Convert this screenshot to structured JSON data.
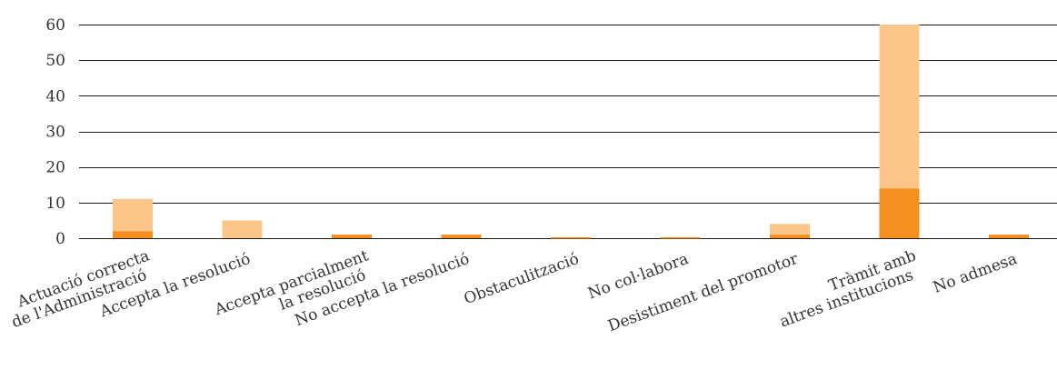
{
  "chart_data": {
    "type": "bar",
    "stacked": true,
    "title": "",
    "xlabel": "",
    "ylabel": "",
    "ylim": [
      0,
      60
    ],
    "yticks": [
      0,
      10,
      20,
      30,
      40,
      50,
      60
    ],
    "grid": true,
    "legend": "none",
    "categories": [
      [
        "Actuació correcta",
        "de l'Administració"
      ],
      [
        "Accepta la resolució"
      ],
      [
        "Accepta parcialment",
        "la resolució"
      ],
      [
        "No accepta la resolució"
      ],
      [
        "Obstaculització"
      ],
      [
        "No col·labora"
      ],
      [
        "Desistiment del promotor"
      ],
      [
        "Tràmit amb",
        "altres institucions"
      ],
      [
        "No admesa"
      ]
    ],
    "series": [
      {
        "color": "#f58f1f",
        "values": [
          2,
          0,
          1,
          1,
          0,
          0,
          1,
          14,
          1
        ]
      },
      {
        "color": "#fcc58a",
        "values": [
          9,
          5,
          0,
          0,
          0,
          0,
          3,
          46,
          0
        ]
      }
    ]
  }
}
